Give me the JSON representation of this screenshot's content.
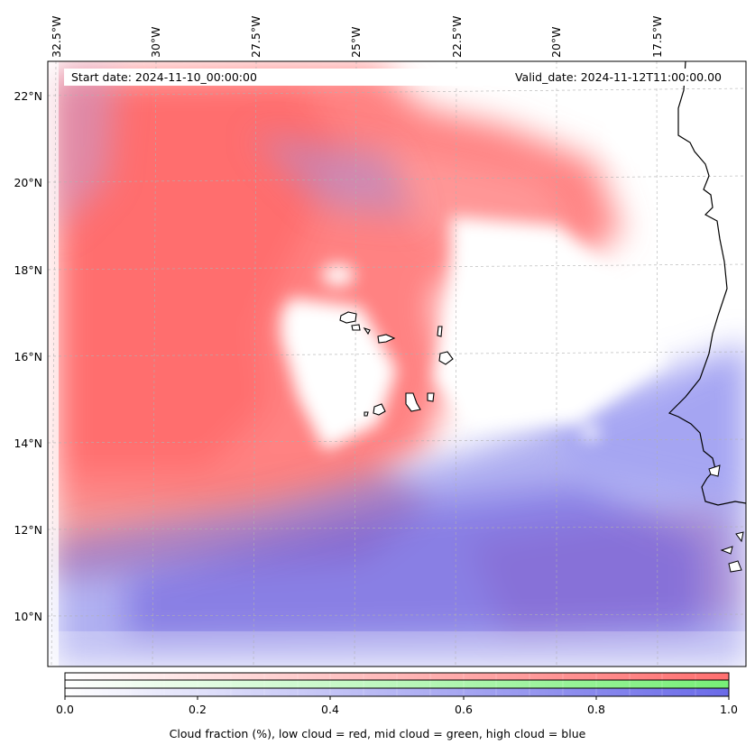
{
  "map": {
    "info": {
      "start_date": "Start date: 2024-11-10_00:00:00",
      "valid_date": "Valid_date: 2024-11-12T11:00:00.00"
    },
    "lon_ticks": [
      "32.5°W",
      "30°W",
      "27.5°W",
      "25°W",
      "22.5°W",
      "20°W",
      "17.5°W"
    ],
    "lat_ticks": [
      "22°N",
      "20°N",
      "18°N",
      "16°N",
      "14°N",
      "12°N",
      "10°N"
    ],
    "colors": {
      "low_cloud": "#ff7a7a",
      "mid_cloud": "#88ee88",
      "high_cloud": "#7777ee",
      "coastline": "#000000",
      "gridline": "#b0b0b0"
    }
  },
  "colorbar": {
    "ticks": [
      "0.0",
      "0.2",
      "0.4",
      "0.6",
      "0.8",
      "1.0"
    ],
    "label": "Cloud fraction (%), low cloud = red, mid cloud = green, high cloud = blue"
  }
}
